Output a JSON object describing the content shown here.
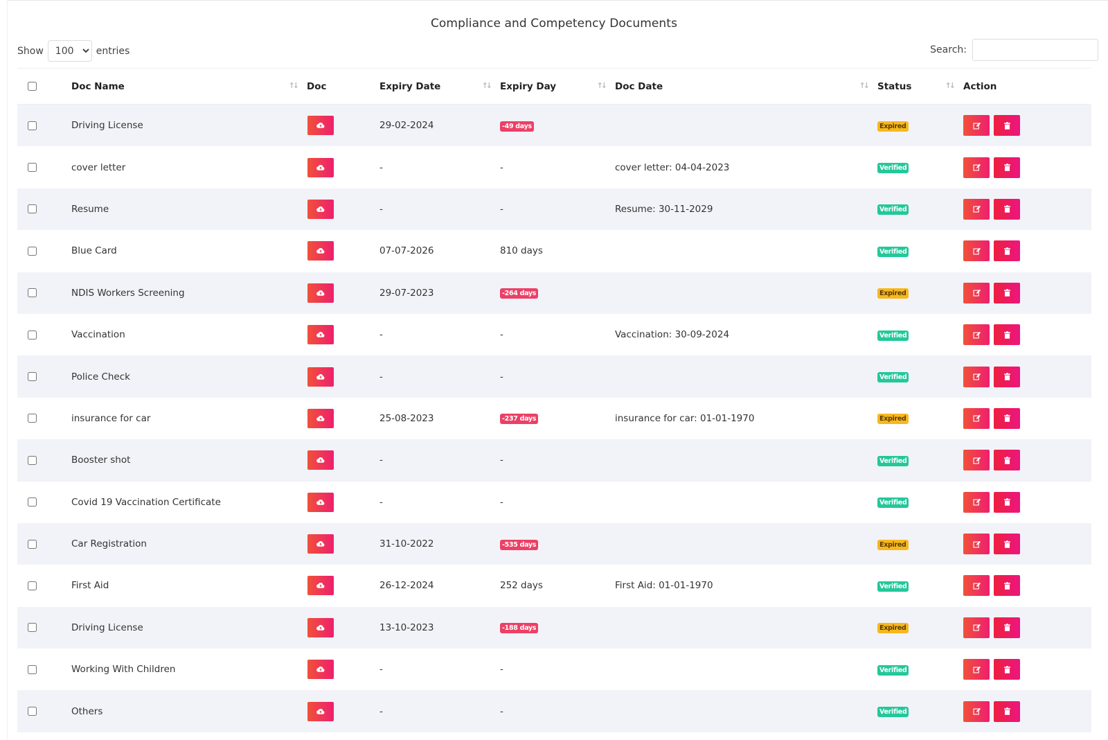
{
  "title": "Compliance and Competency Documents",
  "length": {
    "show_label": "Show",
    "value": "100",
    "entries_label": "entries"
  },
  "search": {
    "label": "Search:",
    "value": ""
  },
  "columns": {
    "name": "Doc Name",
    "doc": "Doc",
    "expiry_date": "Expiry Date",
    "expiry_day": "Expiry Day",
    "doc_date": "Doc Date",
    "status": "Status",
    "action": "Action"
  },
  "colors": {
    "accent": "#ee1f6e",
    "expired": "#f7b81f",
    "verified": "#23c89a",
    "negative_days": "#ec4066"
  },
  "icons": {
    "doc": "cloud-upload-icon",
    "edit": "edit-icon",
    "delete": "trash-icon"
  },
  "rows": [
    {
      "name": "Driving License",
      "expiry_date": "29-02-2024",
      "expiry_day": "-49 days",
      "day_negative": true,
      "doc_date": "",
      "status": "Expired"
    },
    {
      "name": "cover letter",
      "expiry_date": "-",
      "expiry_day": "-",
      "day_negative": false,
      "doc_date": "cover letter: 04-04-2023",
      "status": "Verified"
    },
    {
      "name": "Resume",
      "expiry_date": "-",
      "expiry_day": "-",
      "day_negative": false,
      "doc_date": "Resume: 30-11-2029",
      "status": "Verified"
    },
    {
      "name": "Blue Card",
      "expiry_date": "07-07-2026",
      "expiry_day": "810 days",
      "day_negative": false,
      "doc_date": "",
      "status": "Verified"
    },
    {
      "name": "NDIS Workers Screening",
      "expiry_date": "29-07-2023",
      "expiry_day": "-264 days",
      "day_negative": true,
      "doc_date": "",
      "status": "Expired"
    },
    {
      "name": "Vaccination",
      "expiry_date": "-",
      "expiry_day": "-",
      "day_negative": false,
      "doc_date": "Vaccination: 30-09-2024",
      "status": "Verified"
    },
    {
      "name": "Police Check",
      "expiry_date": "-",
      "expiry_day": "-",
      "day_negative": false,
      "doc_date": "",
      "status": "Verified"
    },
    {
      "name": "insurance for car",
      "expiry_date": "25-08-2023",
      "expiry_day": "-237 days",
      "day_negative": true,
      "doc_date": "insurance for car: 01-01-1970",
      "status": "Expired"
    },
    {
      "name": "Booster shot",
      "expiry_date": "-",
      "expiry_day": "-",
      "day_negative": false,
      "doc_date": "",
      "status": "Verified"
    },
    {
      "name": "Covid 19 Vaccination Certificate",
      "expiry_date": "-",
      "expiry_day": "-",
      "day_negative": false,
      "doc_date": "",
      "status": "Verified"
    },
    {
      "name": "Car Registration",
      "expiry_date": "31-10-2022",
      "expiry_day": "-535 days",
      "day_negative": true,
      "doc_date": "",
      "status": "Expired"
    },
    {
      "name": "First Aid",
      "expiry_date": "26-12-2024",
      "expiry_day": "252 days",
      "day_negative": false,
      "doc_date": "First Aid: 01-01-1970",
      "status": "Verified"
    },
    {
      "name": "Driving License",
      "expiry_date": "13-10-2023",
      "expiry_day": "-188 days",
      "day_negative": true,
      "doc_date": "",
      "status": "Expired"
    },
    {
      "name": "Working With Children",
      "expiry_date": "-",
      "expiry_day": "-",
      "day_negative": false,
      "doc_date": "",
      "status": "Verified"
    },
    {
      "name": "Others",
      "expiry_date": "-",
      "expiry_day": "-",
      "day_negative": false,
      "doc_date": "",
      "status": "Verified"
    }
  ]
}
